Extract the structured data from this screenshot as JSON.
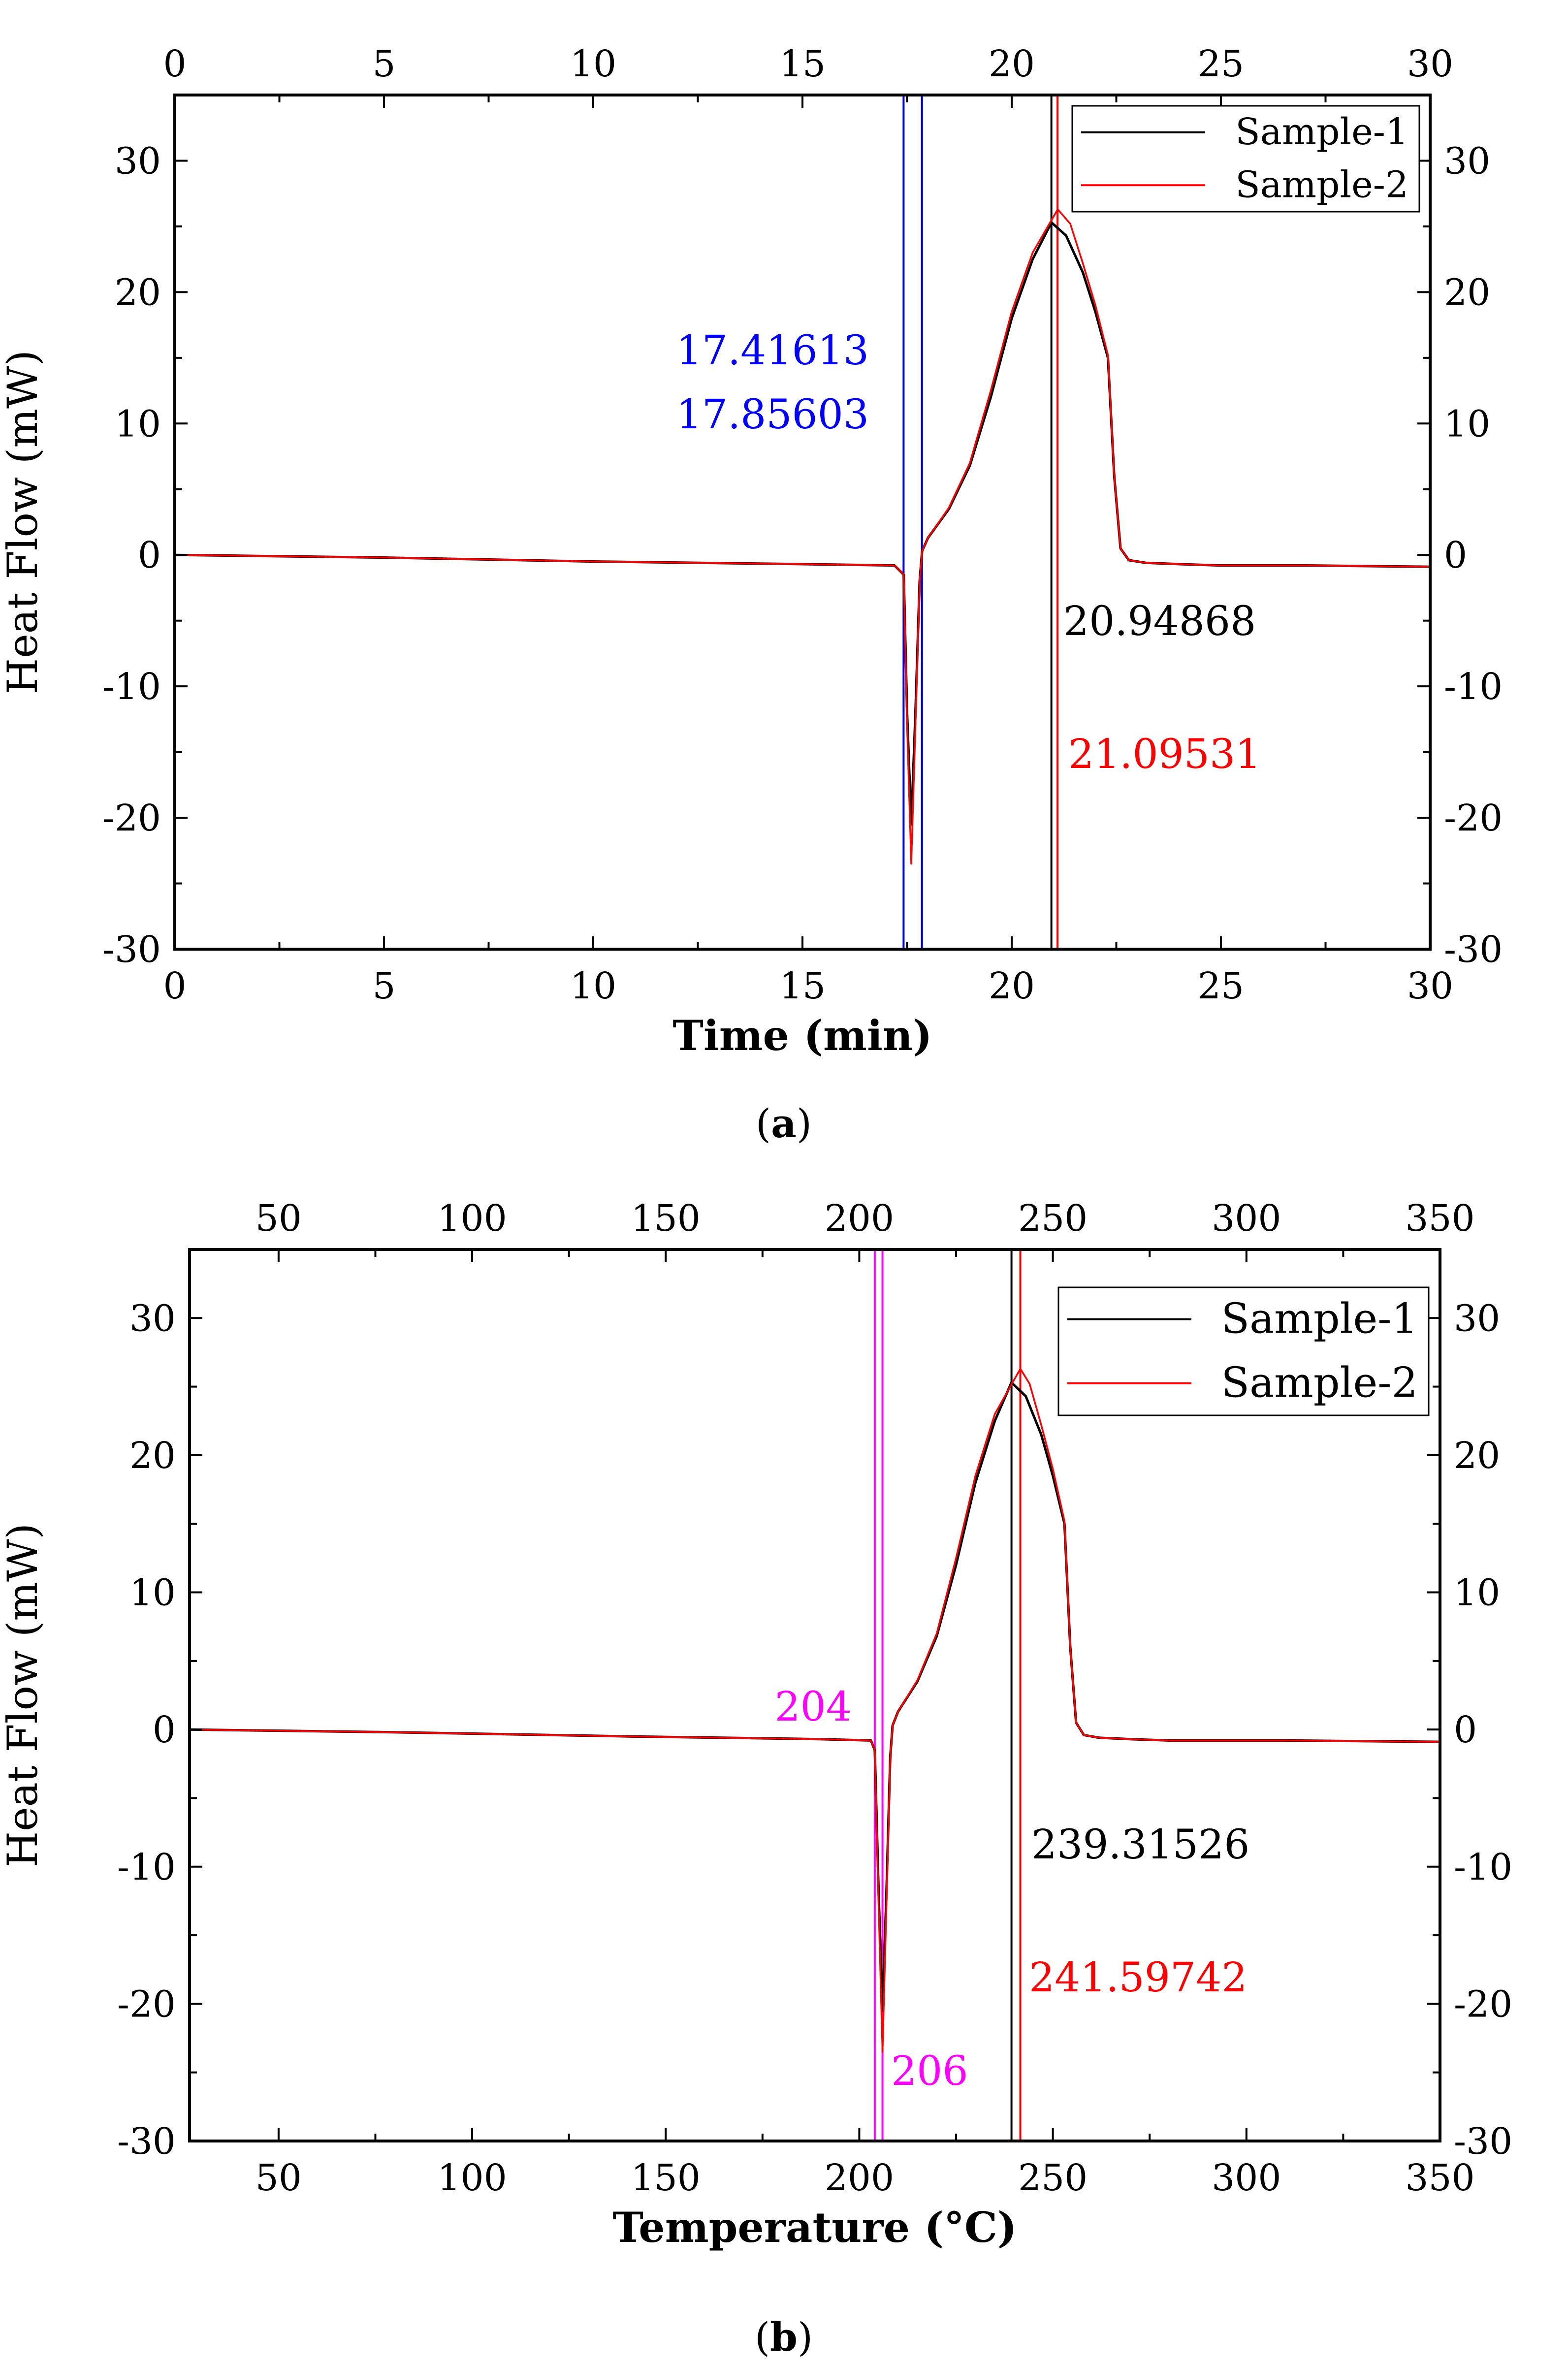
{
  "chart_data": [
    {
      "panel": "a",
      "caption_letter": "a",
      "caption_open": "(",
      "caption_close": ")",
      "type": "line",
      "title": "",
      "xlabel": "Time (min)",
      "ylabel": "Heat Flow (mW)",
      "xlim": [
        0,
        30
      ],
      "ylim": [
        -30,
        35
      ],
      "xticks": [
        0,
        5,
        10,
        15,
        20,
        25,
        30
      ],
      "yticks": [
        -30,
        -20,
        -10,
        0,
        10,
        20,
        30
      ],
      "grid": false,
      "legend": {
        "position": "top-right",
        "entries": [
          "Sample-1",
          "Sample-2"
        ]
      },
      "series": [
        {
          "name": "Sample-1",
          "color": "#000000",
          "x": [
            0,
            5,
            10,
            15,
            17.2,
            17.42,
            17.5,
            17.6,
            17.7,
            17.8,
            17.86,
            18.0,
            18.5,
            19.0,
            19.5,
            20.0,
            20.5,
            20.95,
            21.3,
            21.7,
            22.0,
            22.3,
            22.45,
            22.6,
            22.8,
            23.2,
            24,
            25,
            27,
            30
          ],
          "y": [
            0,
            -0.2,
            -0.5,
            -0.7,
            -0.8,
            -1.5,
            -12,
            -20.5,
            -12,
            -2,
            0.3,
            1.3,
            3.5,
            6.8,
            12,
            18,
            22.5,
            25.3,
            24.3,
            21.5,
            18.5,
            15,
            6,
            0.5,
            -0.4,
            -0.6,
            -0.7,
            -0.8,
            -0.8,
            -0.9
          ]
        },
        {
          "name": "Sample-2",
          "color": "#ff0000",
          "x": [
            0,
            5,
            10,
            15,
            17.2,
            17.42,
            17.5,
            17.6,
            17.7,
            17.8,
            17.86,
            18.0,
            18.5,
            19.0,
            19.5,
            20.0,
            20.5,
            21.1,
            21.4,
            21.7,
            22.0,
            22.3,
            22.45,
            22.6,
            22.8,
            23.2,
            24,
            25,
            27,
            30
          ],
          "y": [
            0,
            -0.2,
            -0.5,
            -0.7,
            -0.8,
            -1.5,
            -13,
            -23.5,
            -13,
            -2,
            0.3,
            1.3,
            3.6,
            7,
            12.5,
            18.5,
            23,
            26.3,
            25.2,
            22.2,
            19,
            15.2,
            6,
            0.5,
            -0.4,
            -0.6,
            -0.7,
            -0.8,
            -0.8,
            -0.9
          ]
        }
      ],
      "vlines": [
        {
          "x": 17.41613,
          "color": "#0000ff",
          "label": "17.41613"
        },
        {
          "x": 17.85603,
          "color": "#0000ff",
          "label": "17.85603"
        },
        {
          "x": 20.94868,
          "color": "#000000",
          "label": "20.94868"
        },
        {
          "x": 21.09531,
          "color": "#ff0000",
          "label": "21.09531"
        }
      ]
    },
    {
      "panel": "b",
      "caption_letter": "b",
      "caption_open": "(",
      "caption_close": ")",
      "type": "line",
      "title": "",
      "xlabel": "Temperature (°C)",
      "ylabel": "Heat Flow (mW)",
      "xlim": [
        27,
        350
      ],
      "ylim": [
        -30,
        35
      ],
      "xticks": [
        50,
        100,
        150,
        200,
        250,
        300,
        350
      ],
      "yticks": [
        -30,
        -20,
        -10,
        0,
        10,
        20,
        30
      ],
      "grid": false,
      "legend": {
        "position": "top-right",
        "entries": [
          "Sample-1",
          "Sample-2"
        ]
      },
      "series": [
        {
          "name": "Sample-1",
          "color": "#000000",
          "x": [
            27,
            80,
            140,
            190,
            203,
            204,
            205,
            206,
            207,
            208,
            208.6,
            210,
            215,
            220,
            225,
            230,
            235,
            239.3,
            243,
            247,
            250,
            253,
            254.5,
            256,
            258,
            262,
            270,
            280,
            310,
            350
          ],
          "y": [
            0,
            -0.2,
            -0.5,
            -0.7,
            -0.8,
            -1.5,
            -12,
            -20.5,
            -12,
            -2,
            0.3,
            1.3,
            3.5,
            6.8,
            12,
            18,
            22.5,
            25.3,
            24.3,
            21.5,
            18.5,
            15,
            6,
            0.5,
            -0.4,
            -0.6,
            -0.7,
            -0.8,
            -0.8,
            -0.9
          ]
        },
        {
          "name": "Sample-2",
          "color": "#ff0000",
          "x": [
            27,
            80,
            140,
            190,
            203,
            204,
            205,
            206,
            207,
            208,
            208.6,
            210,
            215,
            220,
            225,
            230,
            235,
            241.6,
            244,
            247,
            250,
            253,
            254.5,
            256,
            258,
            262,
            270,
            280,
            310,
            350
          ],
          "y": [
            0,
            -0.2,
            -0.5,
            -0.7,
            -0.8,
            -1.5,
            -13,
            -23.5,
            -13,
            -2,
            0.3,
            1.3,
            3.6,
            7,
            12.5,
            18.5,
            23,
            26.3,
            25.2,
            22.2,
            19,
            15.2,
            6,
            0.5,
            -0.4,
            -0.6,
            -0.7,
            -0.8,
            -0.8,
            -0.9
          ]
        }
      ],
      "vlines": [
        {
          "x": 204,
          "color": "#ff00ff",
          "label": "204"
        },
        {
          "x": 206,
          "color": "#ff00ff",
          "label": "206"
        },
        {
          "x": 239.31526,
          "color": "#000000",
          "label": "239.31526"
        },
        {
          "x": 241.59742,
          "color": "#ff0000",
          "label": "241.59742"
        }
      ]
    }
  ]
}
